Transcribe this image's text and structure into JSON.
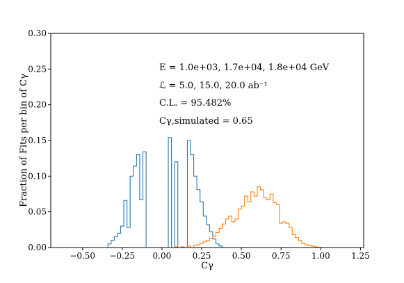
{
  "chart_data": {
    "type": "step-histogram",
    "xlabel": "Cγ",
    "ylabel": "Fraction of Fits per bin of Cγ",
    "xlim": [
      -0.7,
      1.27
    ],
    "ylim": [
      0,
      0.3
    ],
    "xticks": [
      -0.5,
      -0.25,
      0.0,
      0.25,
      0.5,
      0.75,
      1.0,
      1.25
    ],
    "xtick_labels": [
      "−0.50",
      "−0.25",
      "0.00",
      "0.25",
      "0.50",
      "0.75",
      "1.00",
      "1.25"
    ],
    "yticks": [
      0,
      0.05,
      0.1,
      0.15,
      0.2,
      0.25,
      0.3
    ],
    "ytick_labels": [
      "0.00",
      "0.05",
      "0.10",
      "0.15",
      "0.20",
      "0.25",
      "0.30"
    ],
    "annotations": [
      "E = 1.0e+03, 1.7e+04, 1.8e+04 GeV",
      "ℒ = 5.0, 15.0, 20.0 ab⁻¹",
      "C.L. = 95.482%",
      "Cγ,simulated = 0.65"
    ],
    "series": [
      {
        "color": "#1f77b4",
        "edges": [
          -0.6,
          -0.34,
          -0.32,
          -0.3,
          -0.28,
          -0.26,
          -0.24,
          -0.22,
          -0.2,
          -0.18,
          -0.16,
          -0.14,
          -0.12,
          -0.1,
          -0.08,
          -0.06,
          -0.04,
          -0.02,
          0.0,
          0.02,
          0.04,
          0.06,
          0.08,
          0.1,
          0.12,
          0.14,
          0.16,
          0.18,
          0.2,
          0.22,
          0.24,
          0.26,
          0.28,
          0.3,
          0.32,
          0.34,
          0.36,
          0.38,
          1.22
        ],
        "values": [
          0,
          0.005,
          0.01,
          0.015,
          0.02,
          0.03,
          0.066,
          0.028,
          0.1,
          0.114,
          0.13,
          0.067,
          0.134,
          0,
          0,
          0,
          0,
          0,
          0,
          0,
          0.154,
          0,
          0.12,
          0,
          0,
          0,
          0.15,
          0.13,
          0.1,
          0.081,
          0.064,
          0.044,
          0.032,
          0.022,
          0.012,
          0.005,
          0.002,
          0
        ]
      },
      {
        "color": "#ff7f0e",
        "edges": [
          -0.6,
          0.08,
          0.1,
          0.12,
          0.14,
          0.16,
          0.18,
          0.2,
          0.22,
          0.24,
          0.26,
          0.28,
          0.3,
          0.32,
          0.34,
          0.36,
          0.38,
          0.4,
          0.42,
          0.44,
          0.46,
          0.48,
          0.5,
          0.52,
          0.54,
          0.56,
          0.58,
          0.6,
          0.62,
          0.64,
          0.66,
          0.68,
          0.7,
          0.72,
          0.74,
          0.76,
          0.78,
          0.8,
          0.82,
          0.84,
          0.86,
          0.88,
          0.9,
          0.92,
          0.94,
          0.96,
          0.98,
          1.0,
          1.22
        ],
        "values": [
          0,
          0.001,
          0,
          0.001,
          0,
          0.002,
          0,
          0.003,
          0.004,
          0.006,
          0.008,
          0.01,
          0.013,
          0.016,
          0.021,
          0.027,
          0.033,
          0.04,
          0.044,
          0.036,
          0.04,
          0.054,
          0.058,
          0.072,
          0.064,
          0.078,
          0.072,
          0.085,
          0.081,
          0.07,
          0.067,
          0.075,
          0.063,
          0.06,
          0.034,
          0.036,
          0.034,
          0.028,
          0.018,
          0.014,
          0.01,
          0.006,
          0.004,
          0.003,
          0.002,
          0.001,
          0.0005,
          0
        ]
      }
    ]
  }
}
